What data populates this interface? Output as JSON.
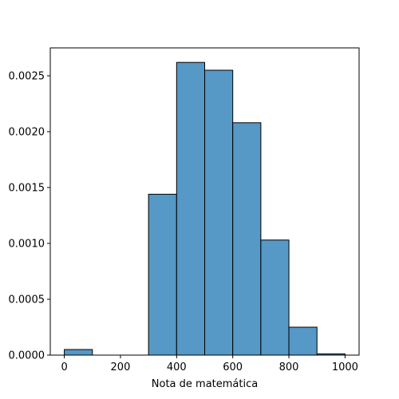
{
  "chart_data": {
    "type": "bar",
    "title": "",
    "xlabel": "Nota de matemática",
    "ylabel": "",
    "xlim": [
      -50,
      1050
    ],
    "ylim": [
      0,
      0.00275
    ],
    "x_ticks": [
      0,
      200,
      400,
      600,
      800,
      1000
    ],
    "x_tick_labels": [
      "0",
      "200",
      "400",
      "600",
      "800",
      "1000"
    ],
    "y_ticks": [
      0,
      0.0005,
      0.001,
      0.0015,
      0.002,
      0.0025
    ],
    "y_tick_labels": [
      "0.0000",
      "0.0005",
      "0.0010",
      "0.0015",
      "0.0020",
      "0.0025"
    ],
    "bins": [
      {
        "start": 0,
        "end": 100,
        "value": 5e-05
      },
      {
        "start": 100,
        "end": 200,
        "value": 0
      },
      {
        "start": 200,
        "end": 300,
        "value": 0
      },
      {
        "start": 300,
        "end": 400,
        "value": 0.00144
      },
      {
        "start": 400,
        "end": 500,
        "value": 0.00262
      },
      {
        "start": 500,
        "end": 600,
        "value": 0.00255
      },
      {
        "start": 600,
        "end": 700,
        "value": 0.00208
      },
      {
        "start": 700,
        "end": 800,
        "value": 0.00103
      },
      {
        "start": 800,
        "end": 900,
        "value": 0.00025
      },
      {
        "start": 900,
        "end": 1000,
        "value": 1e-05
      }
    ],
    "grid": false,
    "legend": "none",
    "colors": {
      "bar_fill": "#5698c6",
      "bar_edge": "#000000",
      "axes": "#000000"
    }
  }
}
